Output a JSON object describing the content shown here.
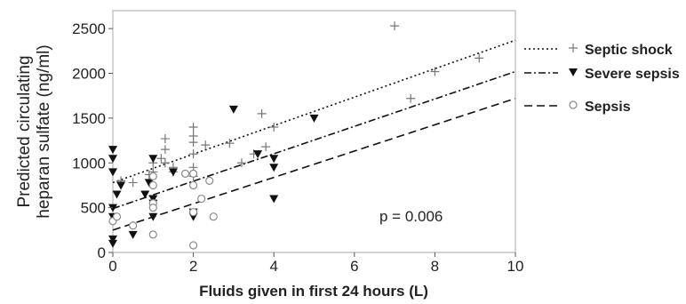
{
  "chart_data": {
    "type": "scatter",
    "title": "",
    "xlabel": "Fluids given in first 24 hours (L)",
    "ylabel_line1": "Predicted circulating",
    "ylabel_line2": "heparan sulfate (ng/ml)",
    "xlim": [
      0,
      10
    ],
    "ylim": [
      0,
      2700
    ],
    "xticks": [
      0,
      2,
      4,
      6,
      8,
      10
    ],
    "yticks": [
      0,
      500,
      1000,
      1500,
      2000,
      2500
    ],
    "grid": false,
    "legend_position": "right-outside",
    "annotation": "p = 0.006",
    "series": [
      {
        "name": "Septic shock",
        "marker": "+",
        "line_style": "dotted",
        "fit": [
          [
            0,
            780
          ],
          [
            10,
            2370
          ]
        ],
        "points": [
          [
            0.2,
            800
          ],
          [
            0.5,
            780
          ],
          [
            0.9,
            870
          ],
          [
            1.0,
            900
          ],
          [
            1.0,
            1000
          ],
          [
            1.2,
            1050
          ],
          [
            1.3,
            1000
          ],
          [
            1.3,
            1150
          ],
          [
            1.3,
            1270
          ],
          [
            1.5,
            950
          ],
          [
            1.5,
            900
          ],
          [
            2.0,
            1400
          ],
          [
            2.0,
            1300
          ],
          [
            2.0,
            1230
          ],
          [
            2.0,
            1100
          ],
          [
            2.0,
            950
          ],
          [
            2.0,
            850
          ],
          [
            2.3,
            1200
          ],
          [
            2.9,
            1220
          ],
          [
            3.2,
            1000
          ],
          [
            3.5,
            1100
          ],
          [
            3.7,
            1550
          ],
          [
            3.8,
            1180
          ],
          [
            4.0,
            1400
          ],
          [
            7.0,
            2530
          ],
          [
            7.4,
            1720
          ],
          [
            8.0,
            2020
          ],
          [
            9.1,
            2170
          ]
        ]
      },
      {
        "name": "Severe sepsis",
        "marker": "filled-triangle-down",
        "line_style": "dash-dot",
        "fit": [
          [
            0,
            490
          ],
          [
            10,
            2020
          ]
        ],
        "points": [
          [
            0.0,
            1150
          ],
          [
            0.0,
            1050
          ],
          [
            0.0,
            900
          ],
          [
            0.0,
            500
          ],
          [
            0.0,
            400
          ],
          [
            0.0,
            150
          ],
          [
            0.0,
            100
          ],
          [
            0.1,
            650
          ],
          [
            0.2,
            750
          ],
          [
            0.5,
            200
          ],
          [
            0.8,
            650
          ],
          [
            0.9,
            780
          ],
          [
            1.0,
            1050
          ],
          [
            1.0,
            600
          ],
          [
            1.0,
            550
          ],
          [
            1.0,
            400
          ],
          [
            1.5,
            900
          ],
          [
            2.0,
            450
          ],
          [
            2.0,
            400
          ],
          [
            3.0,
            1600
          ],
          [
            3.6,
            1100
          ],
          [
            4.0,
            1050
          ],
          [
            4.0,
            950
          ],
          [
            4.0,
            600
          ],
          [
            5.0,
            1500
          ]
        ]
      },
      {
        "name": "Sepsis",
        "marker": "open-circle",
        "line_style": "dashed",
        "fit": [
          [
            0,
            250
          ],
          [
            10,
            1720
          ]
        ],
        "points": [
          [
            0.0,
            350
          ],
          [
            0.1,
            400
          ],
          [
            0.5,
            300
          ],
          [
            1.0,
            850
          ],
          [
            1.0,
            750
          ],
          [
            1.0,
            550
          ],
          [
            1.0,
            500
          ],
          [
            1.0,
            200
          ],
          [
            1.8,
            880
          ],
          [
            2.0,
            880
          ],
          [
            2.0,
            750
          ],
          [
            2.0,
            450
          ],
          [
            2.0,
            80
          ],
          [
            2.2,
            600
          ],
          [
            2.4,
            800
          ],
          [
            2.5,
            400
          ]
        ]
      }
    ]
  }
}
